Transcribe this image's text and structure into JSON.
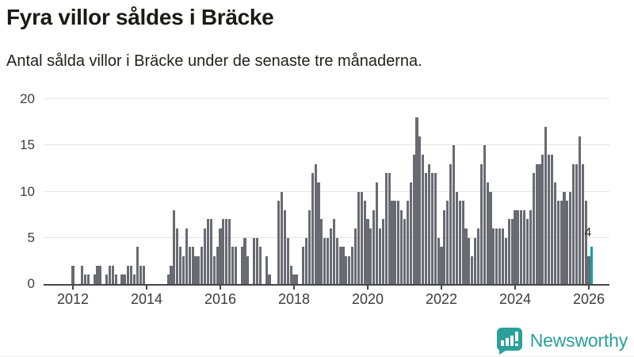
{
  "title": "Fyra villor såldes i Bräcke",
  "subtitle": "Antal sålda villor i Bräcke under de senaste tre månaderna.",
  "colors": {
    "bar": "#6a6a72",
    "highlight": "#10a3a2",
    "axis": "#474747",
    "grid": "#e4e4e4",
    "label_text": "#3c3c3c",
    "brand_teal": "#2ba09a"
  },
  "branding": {
    "label": "Newsworthy",
    "icon": "newsworthy-chart-bubble-icon"
  },
  "chart_data": {
    "type": "bar",
    "title": "Antal sålda villor i Bräcke under de senaste tre månaderna",
    "xlabel": "",
    "ylabel": "",
    "ylim": [
      0,
      20
    ],
    "yticks": [
      0,
      5,
      10,
      15,
      20
    ],
    "xticks": [
      2012,
      2014,
      2016,
      2018,
      2020,
      2022,
      2024,
      2026
    ],
    "grid": "horizontal",
    "legend": "none",
    "frequency": "monthly",
    "start_month": "2011-11",
    "end_month": "2026-02",
    "values": [
      0,
      0,
      2,
      0,
      0,
      2,
      1,
      1,
      0,
      1,
      2,
      2,
      0,
      1,
      2,
      2,
      1,
      0,
      1,
      1,
      2,
      2,
      1,
      4,
      2,
      2,
      0,
      0,
      0,
      0,
      0,
      0,
      0,
      1,
      2,
      8,
      6,
      4,
      3,
      6,
      4,
      4,
      3,
      3,
      4,
      6,
      7,
      7,
      3,
      4,
      6,
      7,
      7,
      7,
      4,
      4,
      0,
      4,
      5,
      3,
      0,
      5,
      5,
      4,
      0,
      3,
      1,
      0,
      0,
      9,
      10,
      8,
      5,
      2,
      1,
      1,
      0,
      4,
      5,
      8,
      12,
      13,
      11,
      7,
      5,
      5,
      6,
      7,
      5,
      4,
      4,
      3,
      3,
      4,
      6,
      10,
      10,
      9,
      7,
      6,
      8,
      11,
      6,
      7,
      12,
      12,
      9,
      9,
      9,
      8,
      7,
      9,
      11,
      14,
      18,
      16,
      14,
      12,
      13,
      12,
      12,
      5,
      4,
      8,
      9,
      13,
      15,
      10,
      9,
      9,
      6,
      5,
      3,
      5,
      6,
      13,
      15,
      11,
      10,
      6,
      6,
      6,
      6,
      5,
      7,
      7,
      8,
      8,
      8,
      8,
      7,
      8,
      12,
      13,
      13,
      14,
      17,
      14,
      14,
      11,
      9,
      9,
      10,
      9,
      10,
      13,
      13,
      16,
      13,
      9,
      3,
      4
    ],
    "highlight": {
      "position": "last",
      "month": "2026-02",
      "value": 4,
      "label": "4"
    }
  }
}
